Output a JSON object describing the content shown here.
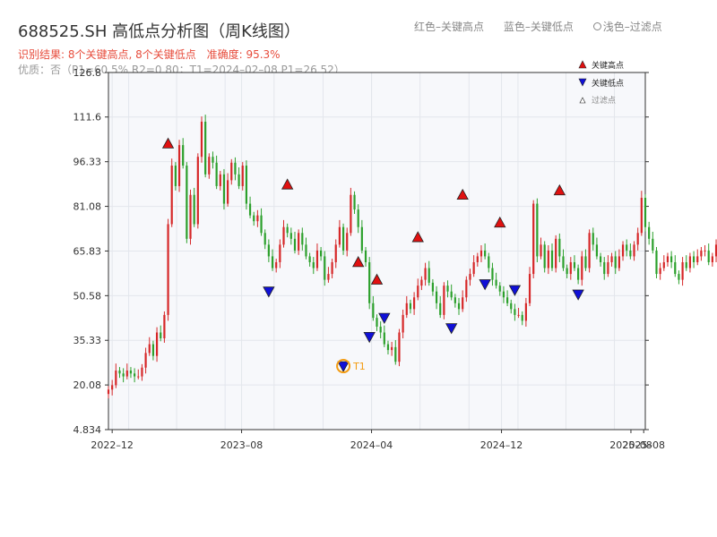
{
  "header": {
    "title": "688525.SH 高低点分析图（周K线图）",
    "legend_red": "红色–关键高点",
    "legend_blue": "蓝色–关键低点",
    "legend_light": "浅色–过滤点",
    "result_text": "识别结果: 8个关键高点, 8个关键低点",
    "accuracy_text": "准确度: 95.3%",
    "quality_text": "优质：否（P1=60.5%  R2=0.80；T1=2024–02–08 P1=26.52）"
  },
  "chart_data": {
    "type": "candlestick",
    "ylim": [
      4.834,
      126.8
    ],
    "y_ticks": [
      "4.834",
      "20.08",
      "35.33",
      "50.58",
      "65.83",
      "81.08",
      "96.33",
      "111.6",
      "126.8"
    ],
    "x_range": [
      "2022-11-24",
      "2025-08-28"
    ],
    "x_ticks": [
      {
        "date": "2022-12-01",
        "label": "2022–12"
      },
      {
        "date": "2023-08-01",
        "label": "2023–08"
      },
      {
        "date": "2024-04-01",
        "label": "2024–04"
      },
      {
        "date": "2024-12-01",
        "label": "2024–12"
      },
      {
        "date": "2025-08-01",
        "label": "2025–08"
      },
      {
        "date": "2025-08-25",
        "label": "2025–08"
      }
    ],
    "up_color": "#d62728",
    "down_color": "#2ca02c",
    "start_date": "2022-11-24",
    "close": [
      18.5,
      20,
      25,
      24,
      23,
      25,
      24,
      23,
      23,
      26,
      31,
      34,
      30,
      38,
      36,
      44,
      75,
      95,
      88,
      102,
      95,
      70,
      85,
      75,
      98,
      110,
      92,
      98,
      96,
      88,
      92,
      82,
      90,
      96,
      92,
      88,
      95,
      82,
      78,
      76,
      78,
      72,
      68,
      64,
      60,
      62,
      68,
      74,
      72,
      70,
      66,
      72,
      68,
      64,
      62,
      60,
      66,
      64,
      56,
      58,
      62,
      68,
      74,
      66,
      72,
      85,
      80,
      74,
      66,
      62,
      48,
      43,
      40,
      38,
      34,
      32,
      33,
      28,
      38,
      44,
      48,
      46,
      50,
      54,
      56,
      60,
      55,
      52,
      48,
      44,
      54,
      52,
      50,
      48,
      46,
      50,
      56,
      58,
      62,
      64,
      66,
      64,
      60,
      56,
      54,
      52,
      50,
      48,
      46,
      44,
      44,
      42,
      48,
      58,
      82,
      64,
      68,
      60,
      66,
      60,
      70,
      64,
      60,
      58,
      62,
      60,
      56,
      64,
      60,
      72,
      68,
      64,
      62,
      58,
      62,
      64,
      60,
      64,
      68,
      66,
      64,
      68,
      72,
      84,
      74,
      70,
      66,
      58,
      60,
      62,
      64,
      62,
      58,
      56,
      62,
      60,
      64,
      62,
      64,
      66,
      66,
      62,
      64,
      68,
      64,
      65,
      66
    ],
    "high_points": [
      {
        "date": "2023-03-16",
        "price": 101
      },
      {
        "date": "2023-10-26",
        "price": 87
      },
      {
        "date": "2024-03-07",
        "price": 60.5
      },
      {
        "date": "2024-04-11",
        "price": 54.5
      },
      {
        "date": "2024-06-27",
        "price": 69
      },
      {
        "date": "2024-09-19",
        "price": 83.5
      },
      {
        "date": "2024-11-28",
        "price": 74
      },
      {
        "date": "2025-03-20",
        "price": 85
      }
    ],
    "low_points": [
      {
        "date": "2023-09-21",
        "price": 52
      },
      {
        "date": "2024-02-08",
        "price": 26.5
      },
      {
        "date": "2024-03-28",
        "price": 36.5
      },
      {
        "date": "2024-04-25",
        "price": 43
      },
      {
        "date": "2024-08-29",
        "price": 39.5
      },
      {
        "date": "2024-10-31",
        "price": 54.5
      },
      {
        "date": "2024-12-26",
        "price": 52.5
      },
      {
        "date": "2025-04-24",
        "price": 51
      }
    ],
    "t1_marker": {
      "date": "2024-02-08",
      "price": 26.52,
      "label": "T1"
    },
    "legend": {
      "high": "关键高点",
      "low": "关键低点",
      "filtered": "过滤点"
    }
  }
}
